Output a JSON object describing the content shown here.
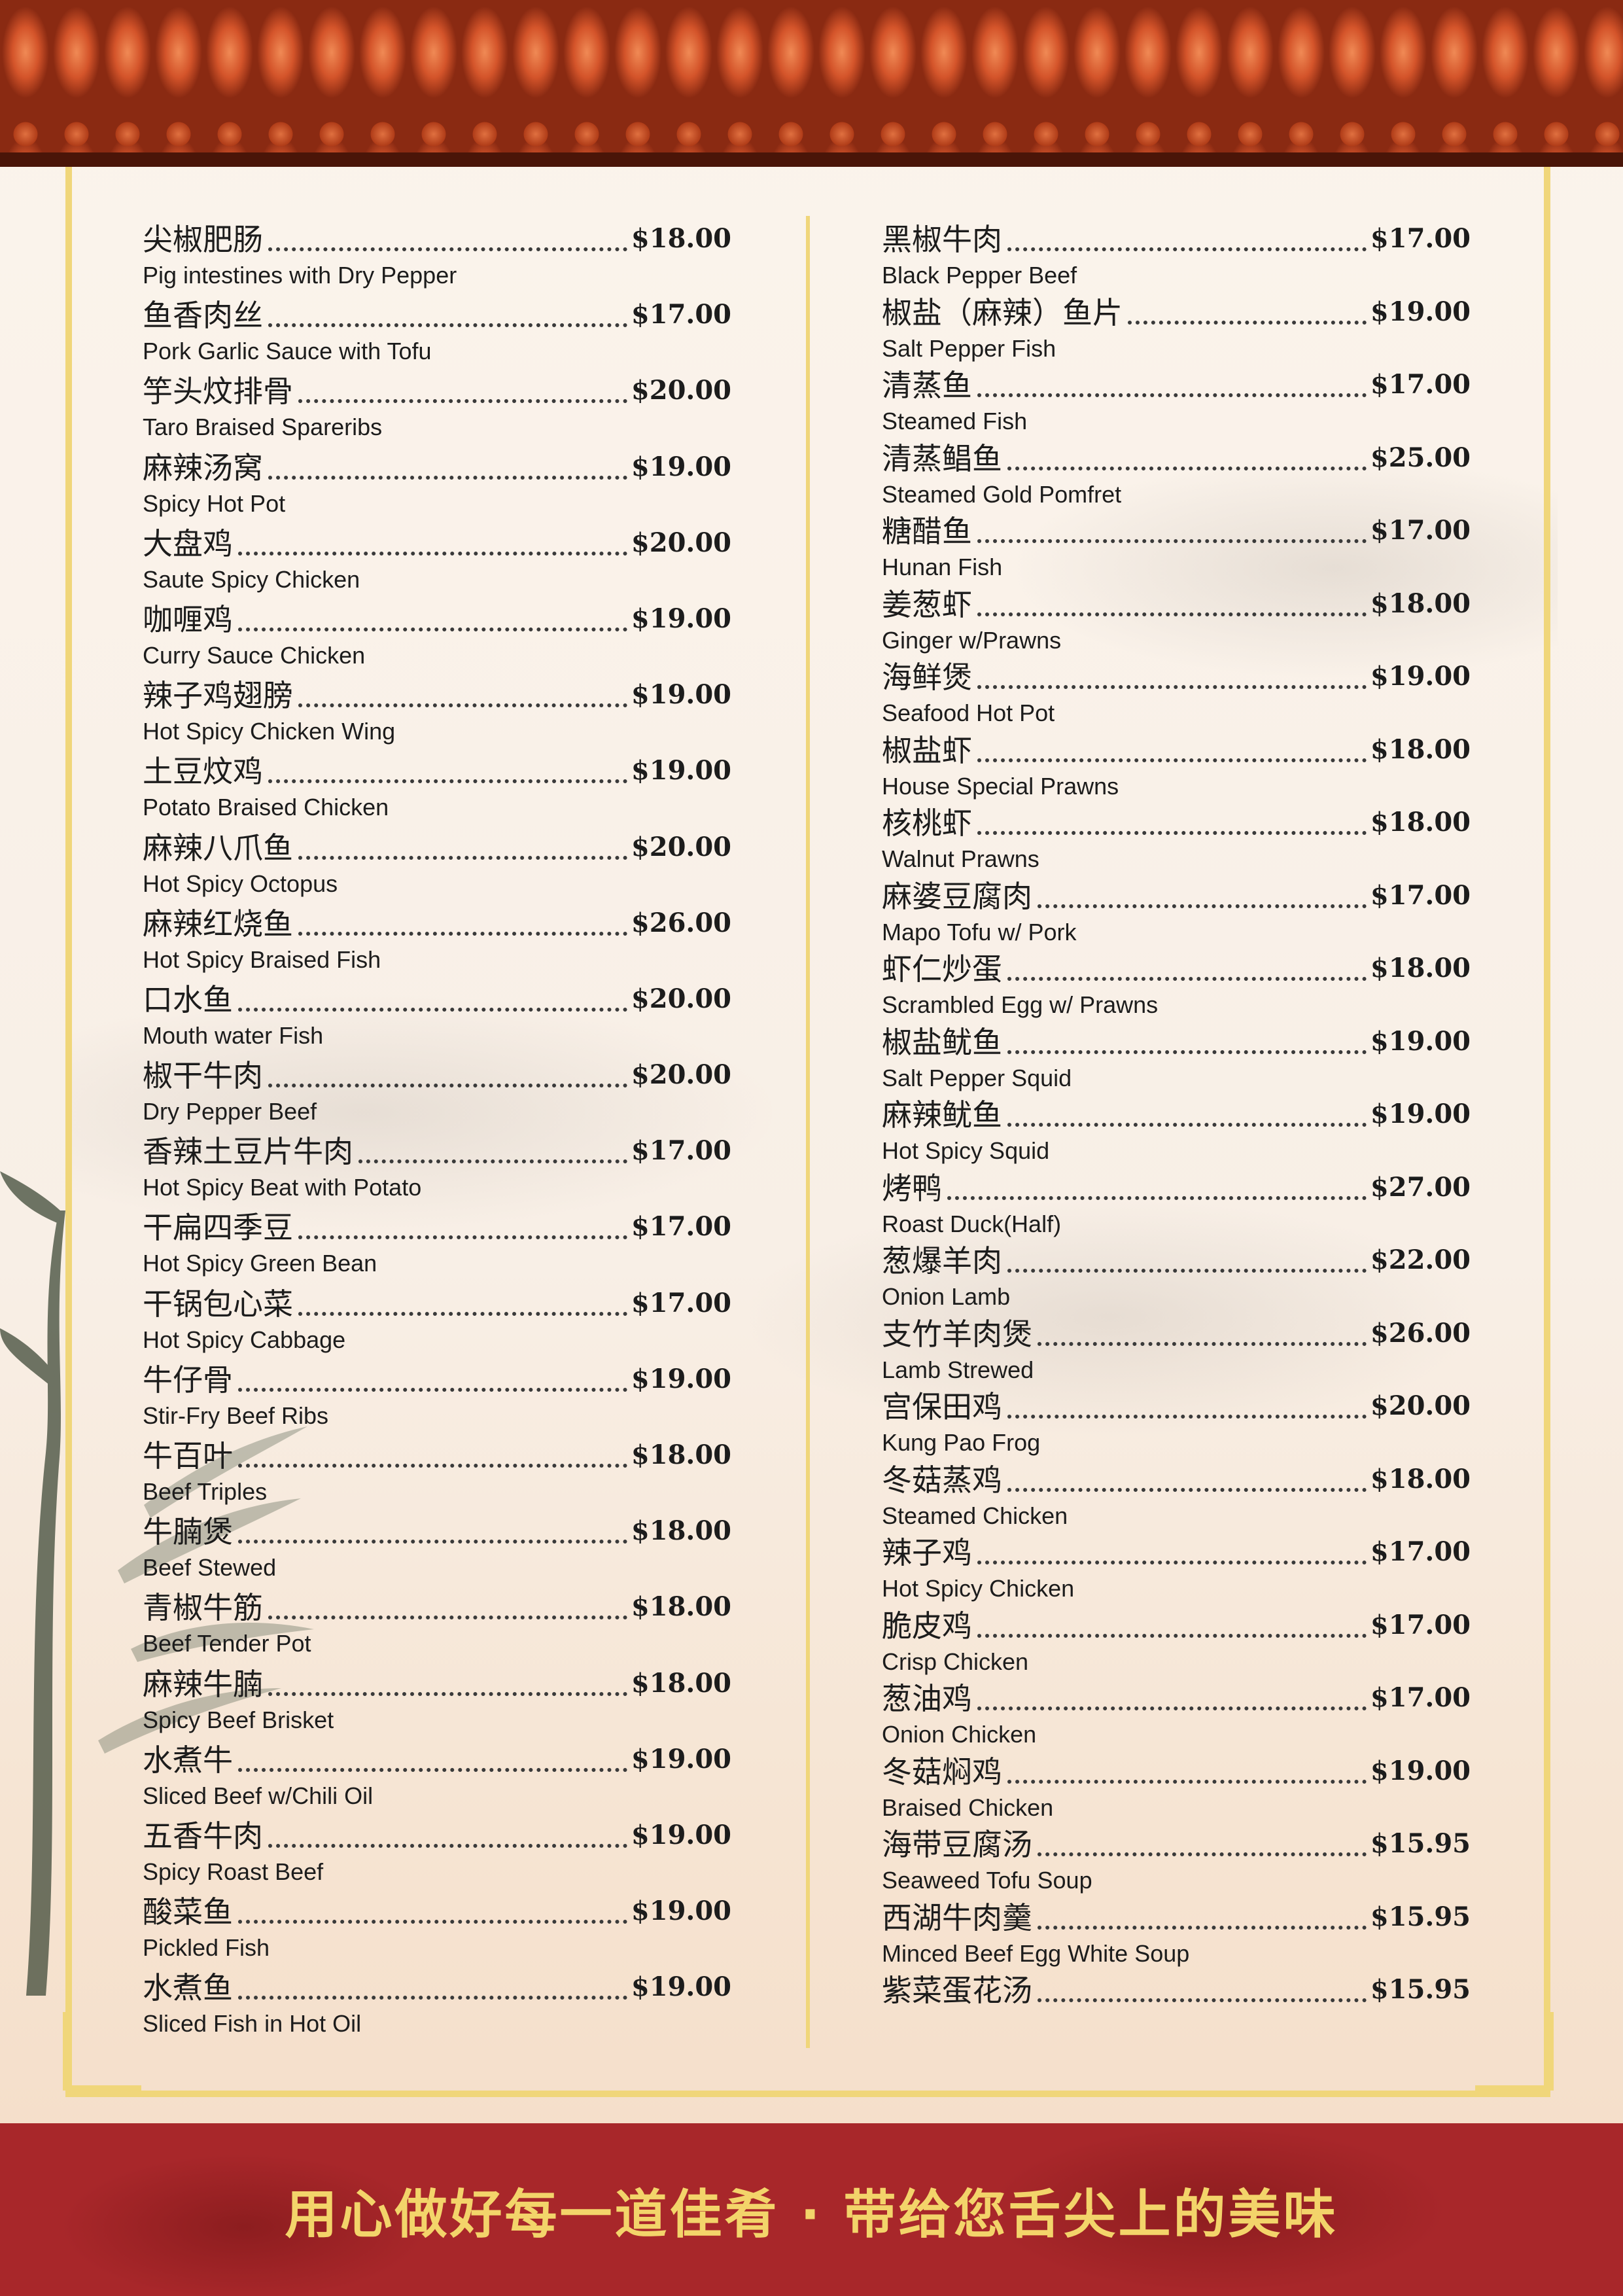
{
  "footer": {
    "slogan": "用心做好每一道佳肴 · 带给您舌尖上的美味"
  },
  "menu": {
    "left": [
      {
        "zh": "尖椒肥肠",
        "en": "Pig intestines with Dry Pepper",
        "price": "$18.00"
      },
      {
        "zh": "鱼香肉丝",
        "en": "Pork Garlic Sauce with Tofu",
        "price": "$17.00"
      },
      {
        "zh": "竽头炆排骨",
        "en": "Taro Braised Spareribs",
        "price": "$20.00"
      },
      {
        "zh": "麻辣汤窝",
        "en": "Spicy Hot Pot",
        "price": "$19.00"
      },
      {
        "zh": "大盘鸡",
        "en": "Saute Spicy Chicken",
        "price": "$20.00"
      },
      {
        "zh": "咖喱鸡",
        "en": "Curry Sauce Chicken",
        "price": "$19.00"
      },
      {
        "zh": "辣子鸡翅膀",
        "en": "Hot Spicy Chicken Wing",
        "price": "$19.00"
      },
      {
        "zh": "土豆炆鸡",
        "en": "Potato Braised Chicken",
        "price": "$19.00"
      },
      {
        "zh": "麻辣八爪鱼",
        "en": "Hot Spicy Octopus",
        "price": "$20.00"
      },
      {
        "zh": "麻辣红烧鱼",
        "en": "Hot Spicy Braised Fish",
        "price": "$26.00"
      },
      {
        "zh": "口水鱼",
        "en": "Mouth water Fish",
        "price": "$20.00"
      },
      {
        "zh": "椒干牛肉",
        "en": "Dry Pepper Beef",
        "price": "$20.00"
      },
      {
        "zh": "香辣土豆片牛肉",
        "en": "Hot Spicy Beat with Potato",
        "price": "$17.00"
      },
      {
        "zh": "干扁四季豆",
        "en": "Hot Spicy Green Bean",
        "price": "$17.00"
      },
      {
        "zh": "干锅包心菜",
        "en": "Hot Spicy Cabbage",
        "price": "$17.00"
      },
      {
        "zh": "牛仔骨",
        "en": "Stir-Fry Beef Ribs",
        "price": "$19.00"
      },
      {
        "zh": "牛百叶",
        "en": "Beef Triples",
        "price": "$18.00"
      },
      {
        "zh": "牛腩煲",
        "en": "Beef Stewed",
        "price": "$18.00"
      },
      {
        "zh": "青椒牛筋",
        "en": "Beef Tender Pot",
        "price": "$18.00"
      },
      {
        "zh": "麻辣牛腩",
        "en": "Spicy Beef Brisket",
        "price": "$18.00"
      },
      {
        "zh": "水煮牛",
        "en": "Sliced Beef w/Chili Oil",
        "price": "$19.00"
      },
      {
        "zh": "五香牛肉",
        "en": "Spicy Roast Beef",
        "price": "$19.00"
      },
      {
        "zh": "酸菜鱼",
        "en": "Pickled Fish",
        "price": "$19.00"
      },
      {
        "zh": "水煮鱼",
        "en": "Sliced Fish in Hot Oil",
        "price": "$19.00"
      }
    ],
    "right": [
      {
        "zh": "黑椒牛肉",
        "en": "Black Pepper Beef",
        "price": "$17.00"
      },
      {
        "zh": "椒盐（麻辣）鱼片",
        "en": "Salt Pepper Fish",
        "price": "$19.00"
      },
      {
        "zh": "清蒸鱼",
        "en": "Steamed Fish",
        "price": "$17.00"
      },
      {
        "zh": "清蒸鲳鱼",
        "en": "Steamed Gold Pomfret",
        "price": "$25.00"
      },
      {
        "zh": "糖醋鱼",
        "en": "Hunan Fish",
        "price": "$17.00"
      },
      {
        "zh": "姜葱虾",
        "en": "Ginger w/Prawns",
        "price": "$18.00"
      },
      {
        "zh": "海鲜煲",
        "en": "Seafood Hot Pot",
        "price": "$19.00"
      },
      {
        "zh": "椒盐虾",
        "en": "House Special Prawns",
        "price": "$18.00"
      },
      {
        "zh": "核桃虾",
        "en": "Walnut Prawns",
        "price": "$18.00"
      },
      {
        "zh": "麻婆豆腐肉",
        "en": "Mapo Tofu w/ Pork",
        "price": "$17.00"
      },
      {
        "zh": "虾仁炒蛋",
        "en": "Scrambled Egg w/ Prawns",
        "price": "$18.00"
      },
      {
        "zh": "椒盐鱿鱼",
        "en": "Salt Pepper Squid",
        "price": "$19.00"
      },
      {
        "zh": "麻辣鱿鱼",
        "en": "Hot Spicy Squid",
        "price": "$19.00"
      },
      {
        "zh": "烤鸭",
        "en": "Roast Duck(Half)",
        "price": "$27.00"
      },
      {
        "zh": "葱爆羊肉",
        "en": "Onion Lamb",
        "price": "$22.00"
      },
      {
        "zh": "支竹羊肉煲",
        "en": "Lamb Strewed",
        "price": "$26.00"
      },
      {
        "zh": "宫保田鸡",
        "en": "Kung Pao Frog",
        "price": "$20.00"
      },
      {
        "zh": "冬菇蒸鸡",
        "en": "Steamed Chicken",
        "price": "$18.00"
      },
      {
        "zh": "辣子鸡",
        "en": "Hot Spicy Chicken",
        "price": "$17.00"
      },
      {
        "zh": "脆皮鸡",
        "en": "Crisp Chicken",
        "price": "$17.00"
      },
      {
        "zh": "葱油鸡",
        "en": "Onion Chicken",
        "price": "$17.00"
      },
      {
        "zh": "冬菇焖鸡",
        "en": "Braised Chicken",
        "price": "$19.00"
      },
      {
        "zh": "海带豆腐汤",
        "en": "Seaweed Tofu Soup",
        "price": "$15.95"
      },
      {
        "zh": "西湖牛肉羹",
        "en": "Minced Beef Egg White Soup",
        "price": "$15.95"
      },
      {
        "zh": "紫菜蛋花汤",
        "en": "",
        "price": "$15.95"
      }
    ]
  }
}
